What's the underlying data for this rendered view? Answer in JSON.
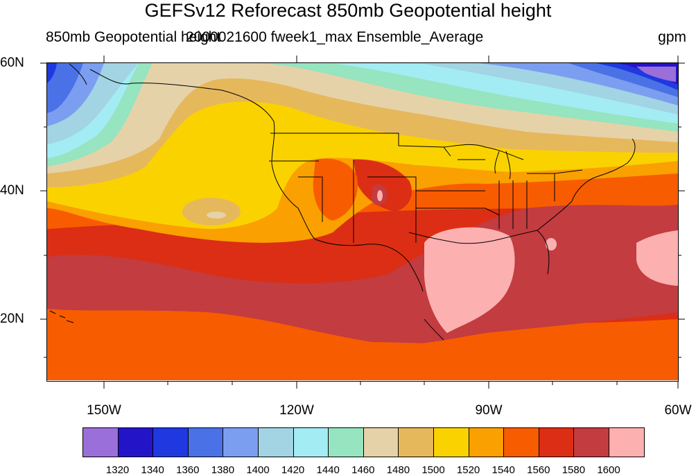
{
  "title": "GEFSv12 Reforecast 850mb Geopotential height",
  "left_string": "850mb Geopotential height",
  "center_string": "2000021600 fweek1_max Ensemble_Average",
  "units": "gpm",
  "lat_labels": [
    "60N",
    "40N",
    "20N"
  ],
  "lon_labels": [
    "150W",
    "120W",
    "90W",
    "60W"
  ],
  "colorbar": {
    "colors": [
      "#9b6fd9",
      "#2414c8",
      "#2038e0",
      "#4a72e6",
      "#7c9ef0",
      "#a2d4e4",
      "#a4ecf4",
      "#96e4c0",
      "#e6d2a8",
      "#e6b85c",
      "#fad200",
      "#faa000",
      "#f85c00",
      "#dc2e14",
      "#c23c40",
      "#fcb0b0"
    ],
    "labels": [
      "1320",
      "1340",
      "1360",
      "1380",
      "1400",
      "1420",
      "1440",
      "1460",
      "1480",
      "1500",
      "1520",
      "1540",
      "1560",
      "1580",
      "1600"
    ]
  }
}
